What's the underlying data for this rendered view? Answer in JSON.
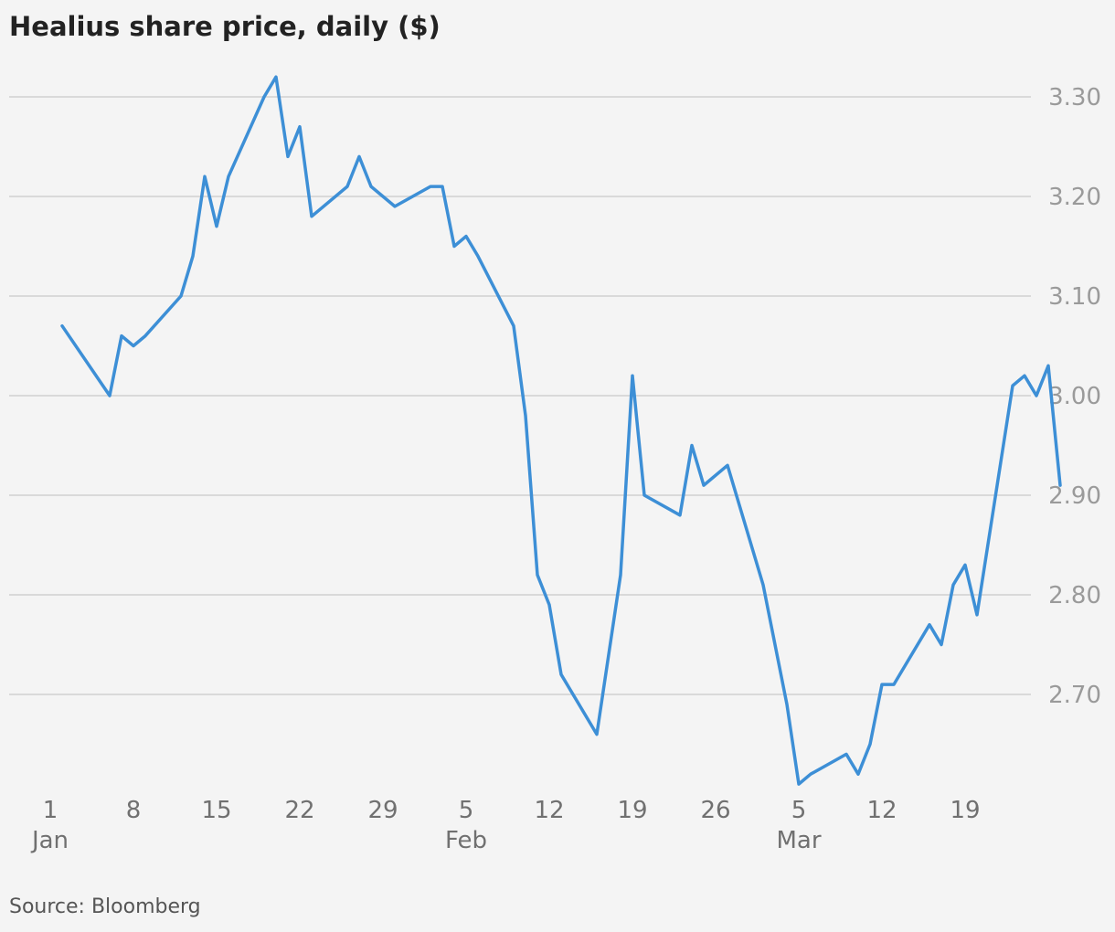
{
  "title": "Healius share price, daily ($)",
  "source": "Source: Bloomberg",
  "colors": {
    "line": "#3d8fd6",
    "grid": "#d9d9d9",
    "background": "#f4f4f4"
  },
  "chart_data": {
    "type": "line",
    "title": "Healius share price, daily ($)",
    "xlabel": "",
    "ylabel": "",
    "ylim": [
      2.6,
      3.33
    ],
    "yticks": [
      {
        "value": 3.3,
        "label": "3.30"
      },
      {
        "value": 3.2,
        "label": "3.20"
      },
      {
        "value": 3.1,
        "label": "3.10"
      },
      {
        "value": 3.0,
        "label": "3.00"
      },
      {
        "value": 2.9,
        "label": "2.90"
      },
      {
        "value": 2.8,
        "label": "2.80"
      },
      {
        "value": 2.7,
        "label": "2.70"
      }
    ],
    "xticks": [
      {
        "date": "Jan 1",
        "label": "1",
        "sublabel": "Jan"
      },
      {
        "date": "Jan 8",
        "label": "8",
        "sublabel": ""
      },
      {
        "date": "Jan 15",
        "label": "15",
        "sublabel": ""
      },
      {
        "date": "Jan 22",
        "label": "22",
        "sublabel": ""
      },
      {
        "date": "Jan 29",
        "label": "29",
        "sublabel": ""
      },
      {
        "date": "Feb 5",
        "label": "5",
        "sublabel": "Feb"
      },
      {
        "date": "Feb 12",
        "label": "12",
        "sublabel": ""
      },
      {
        "date": "Feb 19",
        "label": "19",
        "sublabel": ""
      },
      {
        "date": "Feb 26",
        "label": "26",
        "sublabel": ""
      },
      {
        "date": "Mar 5",
        "label": "5",
        "sublabel": "Mar"
      },
      {
        "date": "Mar 12",
        "label": "12",
        "sublabel": ""
      },
      {
        "date": "Mar 19",
        "label": "19",
        "sublabel": ""
      }
    ],
    "grid": true,
    "series": [
      {
        "points": [
          {
            "date": "Jan 2",
            "y": 3.07
          },
          {
            "date": "Jan 6",
            "y": 3.0
          },
          {
            "date": "Jan 7",
            "y": 3.06
          },
          {
            "date": "Jan 8",
            "y": 3.05
          },
          {
            "date": "Jan 9",
            "y": 3.06
          },
          {
            "date": "Jan 12",
            "y": 3.1
          },
          {
            "date": "Jan 13",
            "y": 3.14
          },
          {
            "date": "Jan 14",
            "y": 3.22
          },
          {
            "date": "Jan 15",
            "y": 3.17
          },
          {
            "date": "Jan 16",
            "y": 3.22
          },
          {
            "date": "Jan 19",
            "y": 3.3
          },
          {
            "date": "Jan 20",
            "y": 3.32
          },
          {
            "date": "Jan 21",
            "y": 3.24
          },
          {
            "date": "Jan 22",
            "y": 3.27
          },
          {
            "date": "Jan 23",
            "y": 3.18
          },
          {
            "date": "Jan 26",
            "y": 3.21
          },
          {
            "date": "Jan 27",
            "y": 3.24
          },
          {
            "date": "Jan 28",
            "y": 3.21
          },
          {
            "date": "Jan 30",
            "y": 3.19
          },
          {
            "date": "Feb 2",
            "y": 3.21
          },
          {
            "date": "Feb 3",
            "y": 3.21
          },
          {
            "date": "Feb 4",
            "y": 3.15
          },
          {
            "date": "Feb 5",
            "y": 3.16
          },
          {
            "date": "Feb 6",
            "y": 3.14
          },
          {
            "date": "Feb 9",
            "y": 3.07
          },
          {
            "date": "Feb 10",
            "y": 2.98
          },
          {
            "date": "Feb 11",
            "y": 2.82
          },
          {
            "date": "Feb 12",
            "y": 2.79
          },
          {
            "date": "Feb 13",
            "y": 2.72
          },
          {
            "date": "Feb 16",
            "y": 2.66
          },
          {
            "date": "Feb 18",
            "y": 2.82
          },
          {
            "date": "Feb 19",
            "y": 3.02
          },
          {
            "date": "Feb 20",
            "y": 2.9
          },
          {
            "date": "Feb 23",
            "y": 2.88
          },
          {
            "date": "Feb 24",
            "y": 2.95
          },
          {
            "date": "Feb 25",
            "y": 2.91
          },
          {
            "date": "Feb 27",
            "y": 2.93
          },
          {
            "date": "Mar 2",
            "y": 2.81
          },
          {
            "date": "Mar 4",
            "y": 2.69
          },
          {
            "date": "Mar 5",
            "y": 2.61
          },
          {
            "date": "Mar 6",
            "y": 2.62
          },
          {
            "date": "Mar 9",
            "y": 2.64
          },
          {
            "date": "Mar 10",
            "y": 2.62
          },
          {
            "date": "Mar 11",
            "y": 2.65
          },
          {
            "date": "Mar 12",
            "y": 2.71
          },
          {
            "date": "Mar 13",
            "y": 2.71
          },
          {
            "date": "Mar 16",
            "y": 2.77
          },
          {
            "date": "Mar 17",
            "y": 2.75
          },
          {
            "date": "Mar 18",
            "y": 2.81
          },
          {
            "date": "Mar 19",
            "y": 2.83
          },
          {
            "date": "Mar 20",
            "y": 2.78
          },
          {
            "date": "Mar 23",
            "y": 3.01
          },
          {
            "date": "Mar 24",
            "y": 3.02
          },
          {
            "date": "Mar 25",
            "y": 3.0
          },
          {
            "date": "Mar 26",
            "y": 3.03
          },
          {
            "date": "Mar 27",
            "y": 2.91
          }
        ]
      }
    ]
  }
}
